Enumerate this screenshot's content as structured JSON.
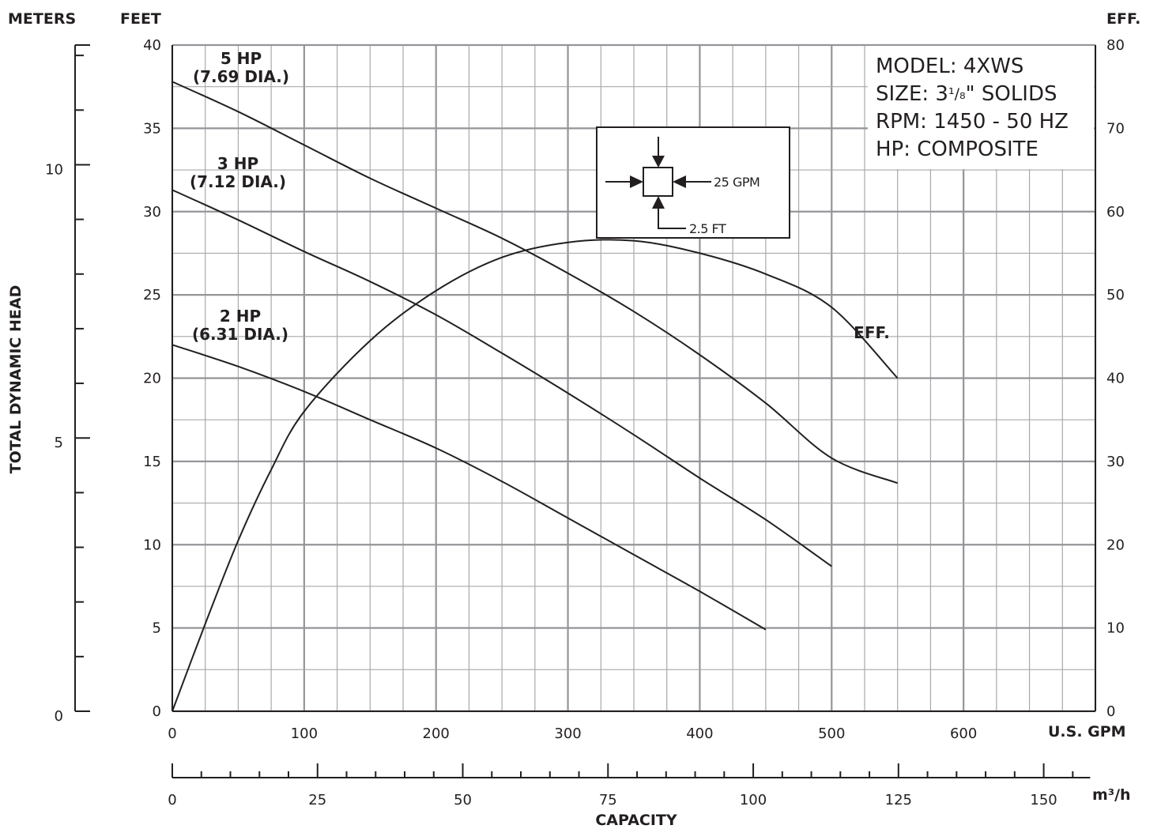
{
  "chart_data": {
    "type": "line",
    "left_outer_axis": {
      "unit_label": "METERS",
      "ticks": [
        0,
        5,
        10
      ],
      "range": [
        0,
        12.19
      ]
    },
    "left_axis": {
      "unit_label": "FEET",
      "title": "TOTAL DYNAMIC HEAD",
      "ticks": [
        0,
        5,
        10,
        15,
        20,
        25,
        30,
        35,
        40
      ],
      "range": [
        0,
        40
      ]
    },
    "right_axis": {
      "unit_label": "EFF.",
      "ticks": [
        0,
        10,
        20,
        30,
        40,
        50,
        60,
        70,
        80
      ],
      "range": [
        0,
        80
      ]
    },
    "x_axis": {
      "unit_label": "U.S. GPM",
      "ticks": [
        0,
        100,
        200,
        300,
        400,
        500,
        600
      ],
      "range": [
        0,
        700
      ]
    },
    "x_axis_metric": {
      "unit_label": "m³/h",
      "title": "CAPACITY",
      "ticks": [
        0,
        25,
        50,
        75,
        100,
        125,
        150
      ],
      "range": [
        0,
        158.9
      ]
    },
    "grid": true,
    "series": [
      {
        "name": "5 HP (7.69 DIA.)",
        "label_line1": "5 HP",
        "label_line2": "(7.69 DIA.)",
        "axis": "left",
        "x": [
          0,
          50,
          100,
          150,
          200,
          250,
          300,
          350,
          400,
          450,
          500,
          550
        ],
        "y": [
          37.8,
          36.0,
          34.0,
          32.0,
          30.2,
          28.4,
          26.3,
          24.0,
          21.4,
          18.5,
          15.2,
          13.7
        ]
      },
      {
        "name": "3 HP (7.12 DIA.)",
        "label_line1": "3 HP",
        "label_line2": "(7.12 DIA.)",
        "axis": "left",
        "x": [
          0,
          50,
          100,
          150,
          200,
          250,
          300,
          350,
          400,
          450,
          500
        ],
        "y": [
          31.3,
          29.5,
          27.6,
          25.8,
          23.8,
          21.5,
          19.1,
          16.6,
          14.0,
          11.5,
          8.7
        ]
      },
      {
        "name": "2 HP (6.31 DIA.)",
        "label_line1": "2 HP",
        "label_line2": "(6.31 DIA.)",
        "axis": "left",
        "x": [
          0,
          50,
          100,
          150,
          200,
          250,
          300,
          350,
          400,
          450
        ],
        "y": [
          22.0,
          20.7,
          19.2,
          17.5,
          15.8,
          13.8,
          11.6,
          9.4,
          7.2,
          4.9
        ]
      },
      {
        "name": "EFF.",
        "label_line1": "EFF.",
        "axis": "right",
        "x": [
          0,
          25,
          50,
          75,
          100,
          150,
          200,
          250,
          300,
          350,
          400,
          450,
          500,
          550
        ],
        "y": [
          0,
          10.5,
          20.5,
          29.0,
          36.0,
          44.5,
          50.5,
          54.5,
          56.3,
          56.5,
          55.0,
          52.5,
          48.5,
          40.0
        ]
      }
    ]
  },
  "info_box": {
    "line1": "MODEL: 4XWS",
    "line2_prefix": "SIZE: 3",
    "line2_fraction": "¹/₈",
    "line2_suffix": "\" SOLIDS",
    "line3": "RPM: 1450 - 50 HZ",
    "line4": "HP: COMPOSITE"
  },
  "scale_legend": {
    "horizontal": "25 GPM",
    "vertical": "2.5 FT"
  }
}
